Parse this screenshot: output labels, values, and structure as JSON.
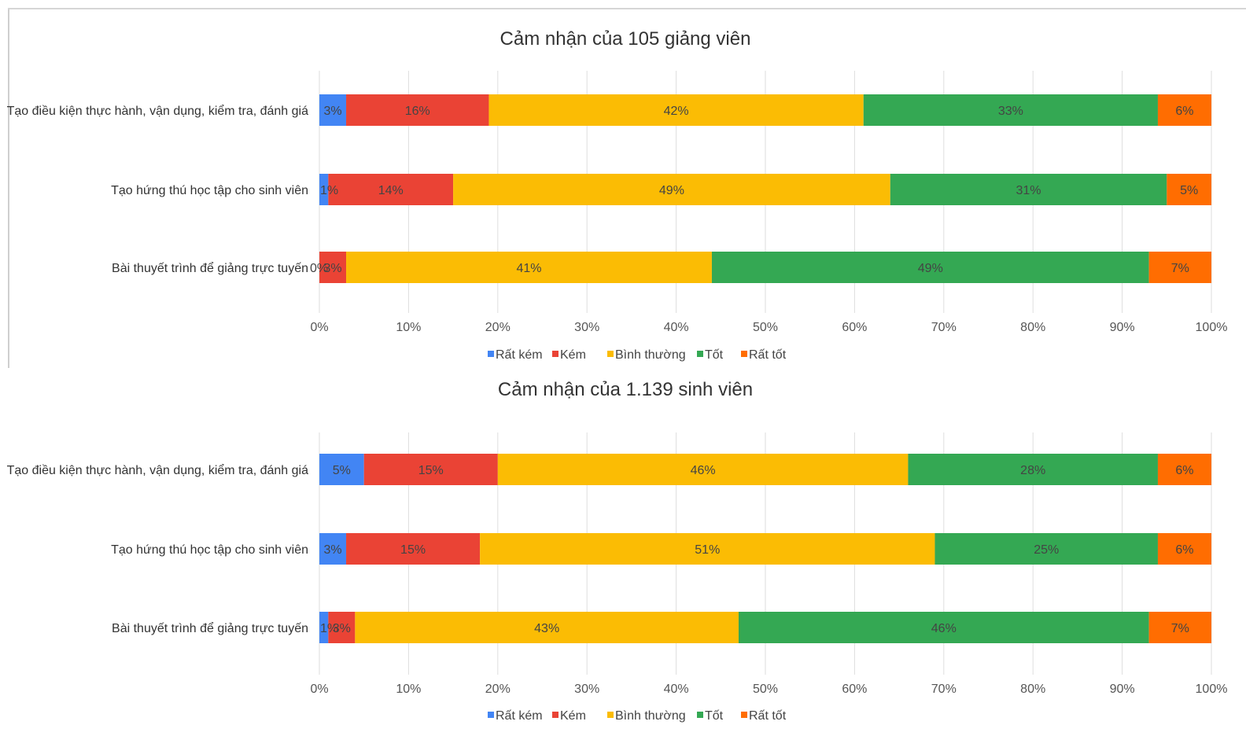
{
  "chart_data": [
    {
      "type": "bar",
      "orientation": "horizontal",
      "stacked": true,
      "title": "Cảm nhận của 105 giảng viên",
      "categories": [
        "Tạo điều kiện thực hành, vận dụng, kiểm tra, đánh giá",
        "Tạo hứng thú học tập cho sinh viên",
        "Bài thuyết trình để giảng trực tuyến"
      ],
      "series": [
        {
          "name": "Rất kém",
          "color": "#4285F4",
          "values": [
            3,
            1,
            0
          ],
          "labels": [
            "3%",
            "1%",
            "0%"
          ]
        },
        {
          "name": "Kém",
          "color": "#EA4335",
          "values": [
            16,
            14,
            3
          ],
          "labels": [
            "16%",
            "14%",
            "3%"
          ]
        },
        {
          "name": "Bình thường",
          "color": "#FBBC04",
          "values": [
            42,
            49,
            41
          ],
          "labels": [
            "42%",
            "49%",
            "41%"
          ]
        },
        {
          "name": "Tốt",
          "color": "#34A853",
          "values": [
            33,
            31,
            49
          ],
          "labels": [
            "33%",
            "31%",
            "49%"
          ]
        },
        {
          "name": "Rất tốt",
          "color": "#FF6D01",
          "values": [
            6,
            5,
            7
          ],
          "labels": [
            "6%",
            "5%",
            "7%"
          ]
        }
      ],
      "xlim": [
        0,
        100
      ],
      "x_ticks": [
        "0%",
        "10%",
        "20%",
        "30%",
        "40%",
        "50%",
        "60%",
        "70%",
        "80%",
        "90%",
        "100%"
      ],
      "grid": true,
      "legend": "bottom"
    },
    {
      "type": "bar",
      "orientation": "horizontal",
      "stacked": true,
      "title": "Cảm nhận của 1.139 sinh viên",
      "categories": [
        "Tạo điều kiện thực hành, vận dụng, kiểm tra, đánh giá",
        "Tạo hứng thú học tập cho sinh viên",
        "Bài thuyết trình để giảng trực tuyến"
      ],
      "series": [
        {
          "name": "Rất kém",
          "color": "#4285F4",
          "values": [
            5,
            3,
            1
          ],
          "labels": [
            "5%",
            "3%",
            "1%"
          ]
        },
        {
          "name": "Kém",
          "color": "#EA4335",
          "values": [
            15,
            15,
            3
          ],
          "labels": [
            "15%",
            "15%",
            "3%"
          ]
        },
        {
          "name": "Bình thường",
          "color": "#FBBC04",
          "values": [
            46,
            51,
            43
          ],
          "labels": [
            "46%",
            "51%",
            "43%"
          ]
        },
        {
          "name": "Tốt",
          "color": "#34A853",
          "values": [
            28,
            25,
            46
          ],
          "labels": [
            "28%",
            "25%",
            "46%"
          ]
        },
        {
          "name": "Rất tốt",
          "color": "#FF6D01",
          "values": [
            6,
            6,
            7
          ],
          "labels": [
            "6%",
            "6%",
            "7%"
          ]
        }
      ],
      "xlim": [
        0,
        100
      ],
      "x_ticks": [
        "0%",
        "10%",
        "20%",
        "30%",
        "40%",
        "50%",
        "60%",
        "70%",
        "80%",
        "90%",
        "100%"
      ],
      "grid": true,
      "legend": "bottom"
    }
  ]
}
